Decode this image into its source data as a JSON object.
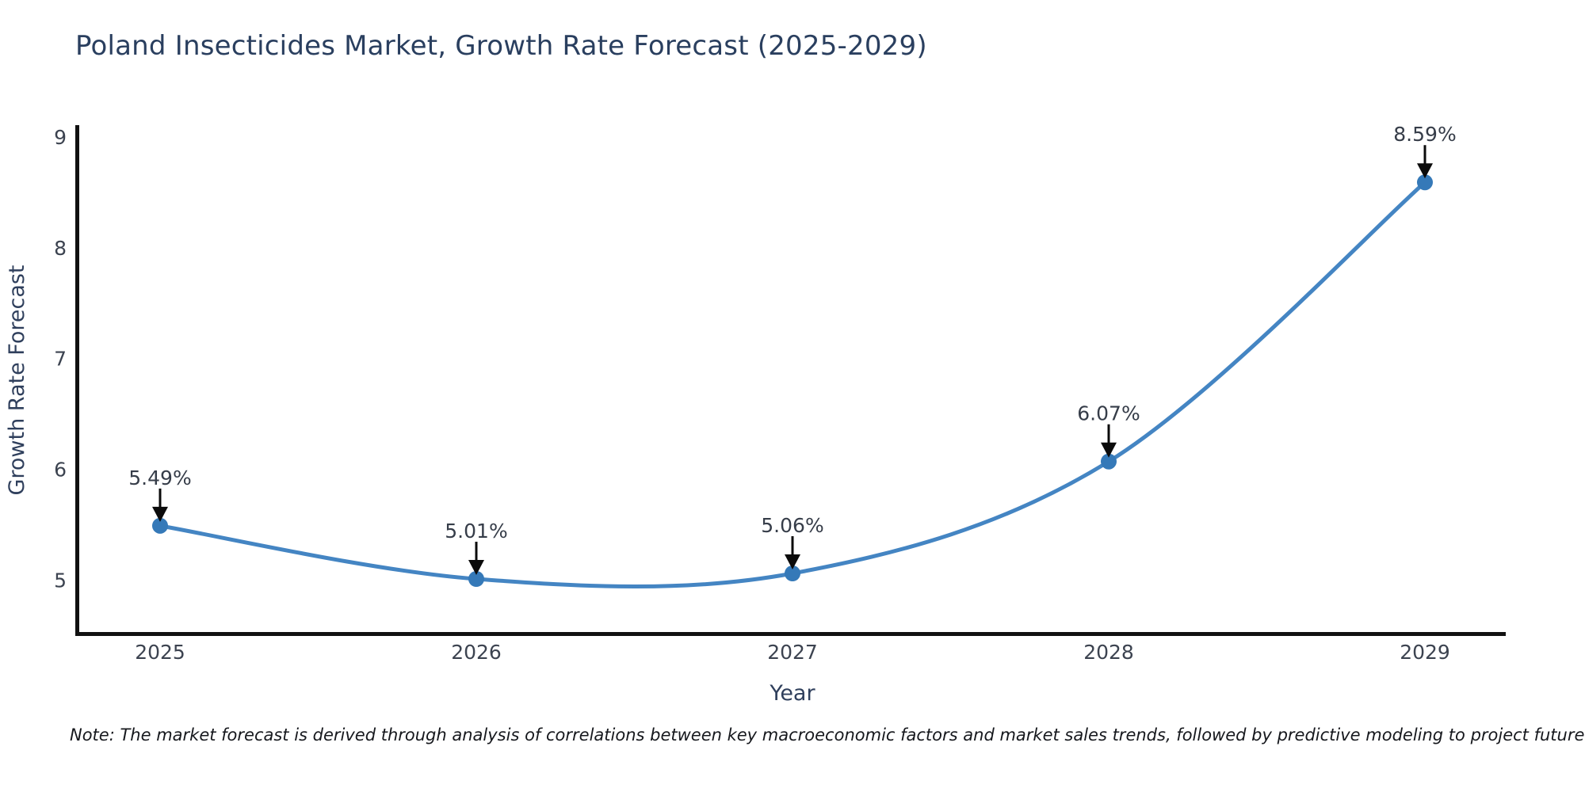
{
  "title": "Poland Insecticides Market, Growth Rate Forecast (2025-2029)",
  "note": "Note: The market forecast is derived through analysis of correlations between key macroeconomic factors and market sales trends, followed by predictive modeling to project future sales.",
  "chart_data": {
    "type": "line",
    "line_shape": "spline",
    "title": "Poland Insecticides Market, Growth Rate Forecast (2025-2029)",
    "xlabel": "Year",
    "ylabel": "Growth Rate Forecast",
    "x": [
      2025,
      2026,
      2027,
      2028,
      2029
    ],
    "values": [
      5.49,
      5.01,
      5.06,
      6.07,
      8.59
    ],
    "point_labels": [
      "5.49%",
      "5.01%",
      "5.06%",
      "6.07%",
      "8.59%"
    ],
    "yticks": [
      5,
      6,
      7,
      8,
      9
    ],
    "xticks": [
      "2025",
      "2026",
      "2027",
      "2028",
      "2029"
    ],
    "ylim": [
      4.52,
      9.1
    ],
    "xlim": [
      2024.73,
      2029.26
    ],
    "grid": false,
    "legend": false,
    "annotations_have_arrows": true
  },
  "colors": {
    "background": "#ffffff",
    "axis_spine": "#111111",
    "line": "#4485c3",
    "marker": "#3579b8",
    "title_text": "#2a3f5f",
    "axis_title_text": "#2f3f5c",
    "tick_text": "#3c4350",
    "annotation_text": "#363d49",
    "arrow": "#0b0b0b",
    "note_text": "#16181d"
  }
}
